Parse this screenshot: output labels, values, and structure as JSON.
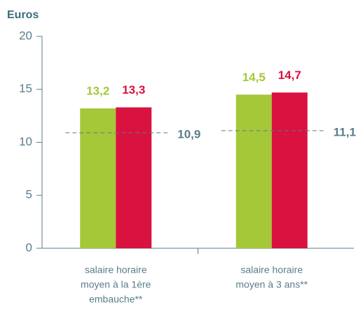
{
  "chart_data": {
    "type": "bar",
    "y_label": "Euros",
    "categories": [
      [
        "salaire horaire",
        "moyen à la 1ère",
        "embauche**"
      ],
      [
        "salaire horaire",
        "moyen à 3 ans**"
      ]
    ],
    "series": [
      {
        "color": "#a5c838",
        "values": [
          13.2,
          14.5
        ],
        "value_labels": [
          "13,2",
          "14,5"
        ]
      },
      {
        "color": "#d9123f",
        "values": [
          13.3,
          14.7
        ],
        "value_labels": [
          "13,3",
          "14,7"
        ]
      }
    ],
    "reference_lines": {
      "color": "#5a7d8c",
      "values": [
        10.9,
        11.1
      ],
      "value_labels": [
        "10,9",
        "11,1"
      ]
    },
    "ylim": [
      0,
      20
    ],
    "yticks": [
      0,
      5,
      10,
      15,
      20
    ]
  }
}
